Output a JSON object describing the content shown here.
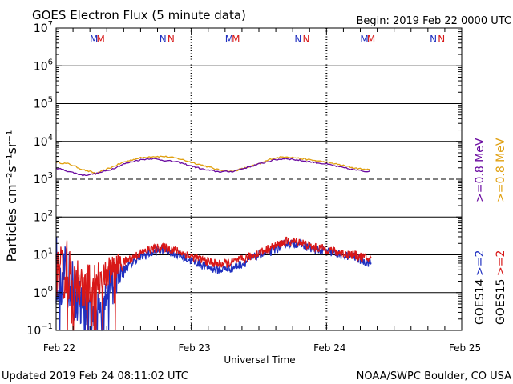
{
  "chart_data": {
    "type": "line",
    "title": "GOES Electron Flux (5 minute data)",
    "begin_label": "Begin: 2019 Feb 22 0000 UTC",
    "updated_label": "Updated 2019 Feb 24 08:11:02 UTC",
    "credit_label": "NOAA/SWPC Boulder, CO USA",
    "xlabel": "Universal Time",
    "ylabel": "Particles cm⁻²s⁻¹sr⁻¹",
    "x_range_days": [
      0,
      3
    ],
    "y_range_log10": [
      -1,
      7
    ],
    "x_ticks": [
      {
        "day": 0,
        "label": "Feb 22"
      },
      {
        "day": 1,
        "label": "Feb 23"
      },
      {
        "day": 2,
        "label": "Feb 24"
      },
      {
        "day": 3,
        "label": "Feb 25"
      }
    ],
    "y_ticks": [
      {
        "exp": -1,
        "label": "10",
        "sup": "−1"
      },
      {
        "exp": 0,
        "label": "10",
        "sup": "0"
      },
      {
        "exp": 1,
        "label": "10",
        "sup": "1"
      },
      {
        "exp": 2,
        "label": "10",
        "sup": "2"
      },
      {
        "exp": 3,
        "label": "10",
        "sup": "3"
      },
      {
        "exp": 4,
        "label": "10",
        "sup": "4"
      },
      {
        "exp": 5,
        "label": "10",
        "sup": "5"
      },
      {
        "exp": 6,
        "label": "10",
        "sup": "6"
      },
      {
        "exp": 7,
        "label": "10",
        "sup": "7"
      }
    ],
    "threshold_exp": 3,
    "markers": [
      {
        "label": "M",
        "day": 0.28,
        "color": "#2030c0"
      },
      {
        "label": "M",
        "day": 0.33,
        "color": "#d81818"
      },
      {
        "label": "N",
        "day": 0.79,
        "color": "#2030c0"
      },
      {
        "label": "N",
        "day": 0.85,
        "color": "#d81818"
      },
      {
        "label": "M",
        "day": 1.28,
        "color": "#2030c0"
      },
      {
        "label": "M",
        "day": 1.33,
        "color": "#d81818"
      },
      {
        "label": "N",
        "day": 1.79,
        "color": "#2030c0"
      },
      {
        "label": "N",
        "day": 1.85,
        "color": "#d81818"
      },
      {
        "label": "M",
        "day": 2.28,
        "color": "#2030c0"
      },
      {
        "label": "M",
        "day": 2.33,
        "color": "#d81818"
      },
      {
        "label": "N",
        "day": 2.79,
        "color": "#2030c0"
      },
      {
        "label": "N",
        "day": 2.85,
        "color": "#d81818"
      }
    ],
    "legend": [
      {
        "group": "GOES14",
        "name": ">=0.8 MeV",
        "color": "#6a0aa0"
      },
      {
        "group": "GOES14",
        "name": ">=2",
        "color": "#2030c0"
      },
      {
        "group": "GOES15",
        "name": ">=0.8 MeV",
        "color": "#e0a010"
      },
      {
        "group": "GOES15",
        "name": ">=2",
        "color": "#d81818"
      }
    ],
    "series": [
      {
        "name": "GOES15 >=0.8 MeV",
        "color": "#e0a010",
        "noise": 0.02,
        "x": [
          0,
          0.1,
          0.2,
          0.3,
          0.4,
          0.5,
          0.6,
          0.7,
          0.8,
          0.9,
          1.0,
          1.1,
          1.2,
          1.3,
          1.4,
          1.5,
          1.6,
          1.7,
          1.8,
          1.9,
          2.0,
          2.1,
          2.2,
          2.3,
          2.33
        ],
        "y": [
          3.45,
          3.4,
          3.25,
          3.15,
          3.3,
          3.45,
          3.55,
          3.6,
          3.6,
          3.55,
          3.45,
          3.35,
          3.25,
          3.2,
          3.3,
          3.4,
          3.55,
          3.6,
          3.55,
          3.5,
          3.45,
          3.38,
          3.3,
          3.25,
          3.25
        ]
      },
      {
        "name": "GOES14 >=0.8 MeV",
        "color": "#6a0aa0",
        "noise": 0.02,
        "x": [
          0,
          0.1,
          0.2,
          0.3,
          0.4,
          0.5,
          0.6,
          0.7,
          0.8,
          0.9,
          1.0,
          1.1,
          1.2,
          1.3,
          1.4,
          1.5,
          1.6,
          1.7,
          1.8,
          1.9,
          2.0,
          2.1,
          2.2,
          2.3,
          2.33
        ],
        "y": [
          3.3,
          3.2,
          3.1,
          3.15,
          3.25,
          3.4,
          3.5,
          3.55,
          3.5,
          3.45,
          3.35,
          3.25,
          3.2,
          3.2,
          3.3,
          3.4,
          3.5,
          3.55,
          3.5,
          3.45,
          3.4,
          3.32,
          3.25,
          3.2,
          3.25
        ]
      },
      {
        "name": "GOES14 >=2",
        "color": "#2030c0",
        "noise": 0.12,
        "x": [
          0,
          0.1,
          0.2,
          0.3,
          0.4,
          0.5,
          0.6,
          0.7,
          0.8,
          0.9,
          1.0,
          1.1,
          1.2,
          1.3,
          1.4,
          1.5,
          1.6,
          1.7,
          1.8,
          1.9,
          2.0,
          2.1,
          2.2,
          2.3,
          2.33
        ],
        "y": [
          0.6,
          0.3,
          -0.5,
          -0.6,
          0.3,
          0.6,
          0.9,
          1.05,
          1.15,
          1.0,
          0.85,
          0.7,
          0.6,
          0.65,
          0.8,
          1.0,
          1.1,
          1.3,
          1.3,
          1.15,
          1.1,
          1.0,
          0.95,
          0.8,
          0.8
        ]
      },
      {
        "name": "GOES15 >=2",
        "color": "#d81818",
        "noise": 0.12,
        "x": [
          0,
          0.1,
          0.2,
          0.3,
          0.4,
          0.5,
          0.6,
          0.7,
          0.8,
          0.9,
          1.0,
          1.1,
          1.2,
          1.3,
          1.4,
          1.5,
          1.6,
          1.7,
          1.8,
          1.9,
          2.0,
          2.1,
          2.2,
          2.3,
          2.33
        ],
        "y": [
          0.7,
          0.5,
          0.1,
          0.3,
          0.6,
          0.8,
          1.0,
          1.15,
          1.2,
          1.1,
          0.95,
          0.85,
          0.75,
          0.8,
          0.9,
          1.05,
          1.2,
          1.35,
          1.35,
          1.2,
          1.15,
          1.05,
          1.0,
          0.9,
          0.9
        ]
      }
    ]
  }
}
